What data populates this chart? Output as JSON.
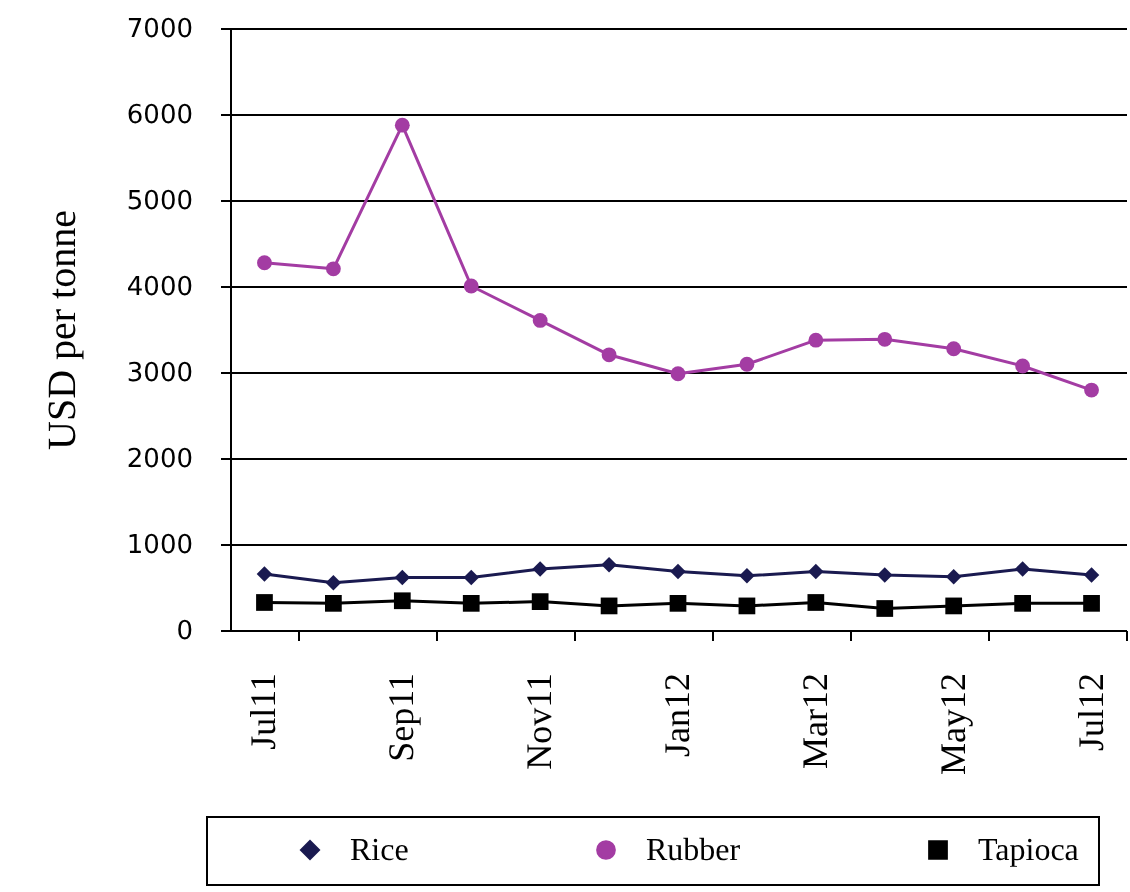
{
  "chart_data": {
    "type": "line",
    "ylabel": "USD per tonne",
    "categories": [
      "Jul11",
      null,
      "Sep11",
      null,
      "Nov11",
      null,
      "Jan12",
      null,
      "Mar12",
      null,
      "May12",
      null,
      "Jul12"
    ],
    "series": [
      {
        "name": "Rice",
        "color": "#1a1a50",
        "marker": "diamond",
        "values": [
          650,
          550,
          610,
          610,
          710,
          760,
          680,
          630,
          680,
          640,
          620,
          710,
          640
        ]
      },
      {
        "name": "Rubber",
        "color": "#a33ca3",
        "marker": "circle",
        "values": [
          4270,
          4200,
          5870,
          4000,
          3600,
          3200,
          2980,
          3090,
          3370,
          3380,
          3270,
          3070,
          2790
        ]
      },
      {
        "name": "Tapioca",
        "color": "#000000",
        "marker": "square",
        "values": [
          320,
          310,
          340,
          310,
          330,
          280,
          310,
          280,
          320,
          250,
          280,
          310,
          310
        ]
      }
    ],
    "ylim": [
      0,
      7000
    ],
    "yticks": [
      0,
      1000,
      2000,
      3000,
      4000,
      5000,
      6000,
      7000
    ],
    "grid": "y",
    "legend": "bottom",
    "line_style": "solid"
  }
}
